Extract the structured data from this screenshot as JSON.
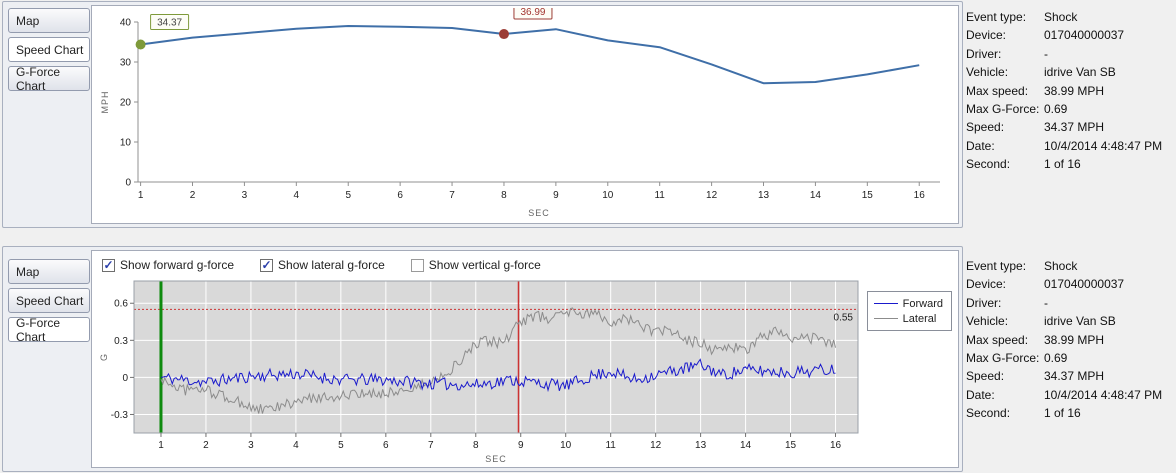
{
  "tabs": {
    "items": [
      {
        "label": "Map"
      },
      {
        "label": "Speed Chart"
      },
      {
        "label": "G-Force Chart"
      }
    ],
    "top_selected_index": 1,
    "bottom_selected_index": 2
  },
  "gforce_controls": [
    {
      "label": "Show forward g-force",
      "checked": true
    },
    {
      "label": "Show lateral g-force",
      "checked": true
    },
    {
      "label": "Show vertical g-force",
      "checked": false
    }
  ],
  "info_panel": {
    "rows": [
      {
        "label": "Event type:",
        "value": "Shock"
      },
      {
        "label": "Device:",
        "value": "017040000037"
      },
      {
        "label": "Driver:",
        "value": "-"
      },
      {
        "label": "Vehicle:",
        "value": "idrive Van SB"
      },
      {
        "label": "Max speed:",
        "value": "38.99 MPH"
      },
      {
        "label": "Max G-Force:",
        "value": "0.69"
      },
      {
        "label": "Speed:",
        "value": "34.37 MPH"
      },
      {
        "label": "Date:",
        "value": "10/4/2014 4:48:47 PM"
      },
      {
        "label": "Second:",
        "value": "1 of 16"
      }
    ]
  },
  "chart_data": [
    {
      "type": "line",
      "title": "Speed Chart",
      "xlabel": "SEC",
      "ylabel": "MPH",
      "x": [
        1,
        2,
        3,
        4,
        5,
        6,
        7,
        8,
        9,
        10,
        11,
        12,
        13,
        14,
        15,
        16
      ],
      "values": [
        34.37,
        36.1,
        37.2,
        38.3,
        38.99,
        38.8,
        38.5,
        36.99,
        38.2,
        35.4,
        33.7,
        29.4,
        24.7,
        25.0,
        26.9,
        29.2
      ],
      "xticks": [
        1,
        2,
        3,
        4,
        5,
        6,
        7,
        8,
        9,
        10,
        11,
        12,
        13,
        14,
        15,
        16
      ],
      "yticks": [
        0,
        10,
        20,
        30,
        40
      ],
      "xlim": [
        0.95,
        16.4
      ],
      "ylim": [
        0,
        40
      ],
      "line_color": "#3f6fa8",
      "grid": false,
      "markers": [
        {
          "x": 1,
          "value": 34.37,
          "label": "34.37",
          "color": "#7e9a3a",
          "text_color": "#444444"
        },
        {
          "x": 8,
          "value": 36.99,
          "label": "36.99",
          "color": "#9c3d36",
          "text_color": "#a23530"
        }
      ]
    },
    {
      "type": "line",
      "title": "G-Force Chart",
      "xlabel": "SEC",
      "ylabel": "G",
      "xticks": [
        1,
        2,
        3,
        4,
        5,
        6,
        7,
        8,
        9,
        10,
        11,
        12,
        13,
        14,
        15,
        16
      ],
      "yticks": [
        -0.3,
        0,
        0.3,
        0.6
      ],
      "xlim": [
        0.4,
        16.5
      ],
      "ylim": [
        -0.45,
        0.78
      ],
      "plot_bg": "#d9d9d9",
      "grid": true,
      "legend_position": "right",
      "threshold": {
        "value": 0.55,
        "label": "0.55",
        "color": "#cc3333"
      },
      "event_lines": [
        {
          "x": 1,
          "color": "#0e8a0e",
          "width": 3
        },
        {
          "x": 8.95,
          "color": "#cc3333",
          "width": 1.5
        }
      ],
      "series": [
        {
          "name": "Forward",
          "color": "#1a1acc",
          "seed": 11,
          "noise": 0.05,
          "keyframes": [
            [
              1,
              0
            ],
            [
              2,
              -0.04
            ],
            [
              3,
              0.01
            ],
            [
              4,
              0.03
            ],
            [
              5,
              -0.02
            ],
            [
              6,
              -0.02
            ],
            [
              7,
              -0.05
            ],
            [
              8,
              -0.06
            ],
            [
              8.8,
              -0.02
            ],
            [
              9.5,
              -0.05
            ],
            [
              10,
              -0.07
            ],
            [
              10.5,
              0.0
            ],
            [
              11,
              0.05
            ],
            [
              11.5,
              -0.02
            ],
            [
              12,
              0.02
            ],
            [
              12.5,
              0.06
            ],
            [
              13,
              0.1
            ],
            [
              13.5,
              0.02
            ],
            [
              14,
              0.06
            ],
            [
              15,
              0.04
            ],
            [
              16,
              0.07
            ]
          ]
        },
        {
          "name": "Lateral",
          "color": "#8c8c8c",
          "seed": 97,
          "noise": 0.045,
          "keyframes": [
            [
              1,
              -0.02
            ],
            [
              1.5,
              -0.1
            ],
            [
              2,
              -0.1
            ],
            [
              2.5,
              -0.17
            ],
            [
              3,
              -0.24
            ],
            [
              3.3,
              -0.27
            ],
            [
              3.8,
              -0.22
            ],
            [
              4.5,
              -0.16
            ],
            [
              5,
              -0.15
            ],
            [
              5.5,
              -0.14
            ],
            [
              6,
              -0.12
            ],
            [
              6.5,
              -0.1
            ],
            [
              7,
              -0.04
            ],
            [
              7.5,
              0.08
            ],
            [
              8,
              0.26
            ],
            [
              8.3,
              0.3
            ],
            [
              8.6,
              0.27
            ],
            [
              9,
              0.45
            ],
            [
              9.3,
              0.5
            ],
            [
              9.7,
              0.47
            ],
            [
              10,
              0.55
            ],
            [
              10.3,
              0.5
            ],
            [
              10.7,
              0.52
            ],
            [
              11,
              0.45
            ],
            [
              11.3,
              0.48
            ],
            [
              11.7,
              0.42
            ],
            [
              12,
              0.36
            ],
            [
              12.3,
              0.38
            ],
            [
              12.7,
              0.3
            ],
            [
              13,
              0.28
            ],
            [
              13.3,
              0.22
            ],
            [
              13.7,
              0.25
            ],
            [
              14,
              0.2
            ],
            [
              14.3,
              0.33
            ],
            [
              14.7,
              0.37
            ],
            [
              15,
              0.3
            ],
            [
              15.5,
              0.32
            ],
            [
              16,
              0.27
            ]
          ]
        }
      ]
    }
  ]
}
